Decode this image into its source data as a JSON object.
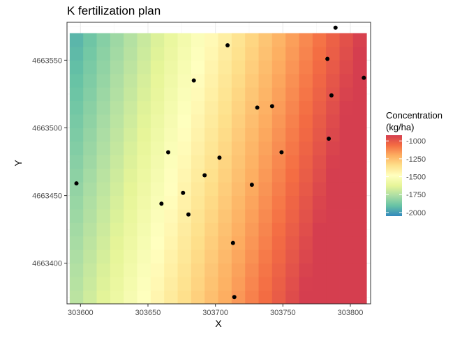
{
  "chart_data": {
    "type": "heatmap",
    "title": "K fertilization plan",
    "xlabel": "X",
    "ylabel": "Y",
    "xlim": [
      303590,
      303815
    ],
    "ylim": [
      4663370,
      4663578
    ],
    "x_ticks": [
      303600,
      303650,
      303700,
      303750,
      303800
    ],
    "y_ticks": [
      4663400,
      4663450,
      4663500,
      4663550
    ],
    "x_tick_labels": [
      "303600",
      "303650",
      "303700",
      "303750",
      "303800"
    ],
    "y_tick_labels": [
      "4663400",
      "4663450",
      "4663500",
      "4663550"
    ],
    "grid": true,
    "raster": {
      "x_range": [
        303592,
        303812
      ],
      "y_range": [
        4663370,
        4663570
      ],
      "ncols": 22,
      "nrows": 20,
      "field": {
        "intercept": -1330,
        "x_slope": 4.8,
        "y_slope": -1.1,
        "x_center": 303702,
        "y_center": 4663470
      }
    },
    "points": [
      {
        "x": 303789,
        "y": 4663574
      },
      {
        "x": 303709,
        "y": 4663561
      },
      {
        "x": 303783,
        "y": 4663551
      },
      {
        "x": 303810,
        "y": 4663537
      },
      {
        "x": 303684,
        "y": 4663535
      },
      {
        "x": 303786,
        "y": 4663524
      },
      {
        "x": 303742,
        "y": 4663516
      },
      {
        "x": 303731,
        "y": 4663515
      },
      {
        "x": 303784,
        "y": 4663492
      },
      {
        "x": 303665,
        "y": 4663482
      },
      {
        "x": 303749,
        "y": 4663482
      },
      {
        "x": 303703,
        "y": 4663478
      },
      {
        "x": 303692,
        "y": 4663465
      },
      {
        "x": 303597,
        "y": 4663459
      },
      {
        "x": 303727,
        "y": 4663458
      },
      {
        "x": 303676,
        "y": 4663452
      },
      {
        "x": 303660,
        "y": 4663444
      },
      {
        "x": 303680,
        "y": 4663436
      },
      {
        "x": 303713,
        "y": 4663415
      },
      {
        "x": 303714,
        "y": 4663375
      }
    ],
    "legend": {
      "title_lines": [
        "Concentration",
        "(kg/ha)"
      ],
      "placement": "right",
      "range": [
        -2050,
        -920
      ],
      "breaks": [
        -1000,
        -1250,
        -1500,
        -1750,
        -2000
      ],
      "break_labels": [
        "-1000",
        "-1250",
        "-1500",
        "-1750",
        "-2000"
      ],
      "colors": [
        "#d53e4f",
        "#f46d43",
        "#fdae61",
        "#fee08b",
        "#ffffbf",
        "#e6f598",
        "#abdda4",
        "#66c2a5",
        "#3288bd"
      ]
    },
    "colors": {
      "panel_border": "#333333",
      "grid_major": "#ebebeb",
      "grid_minor": "#f4f4f4",
      "point": "#000000",
      "tick_text": "#4d4d4d",
      "title_text": "#000000"
    }
  }
}
